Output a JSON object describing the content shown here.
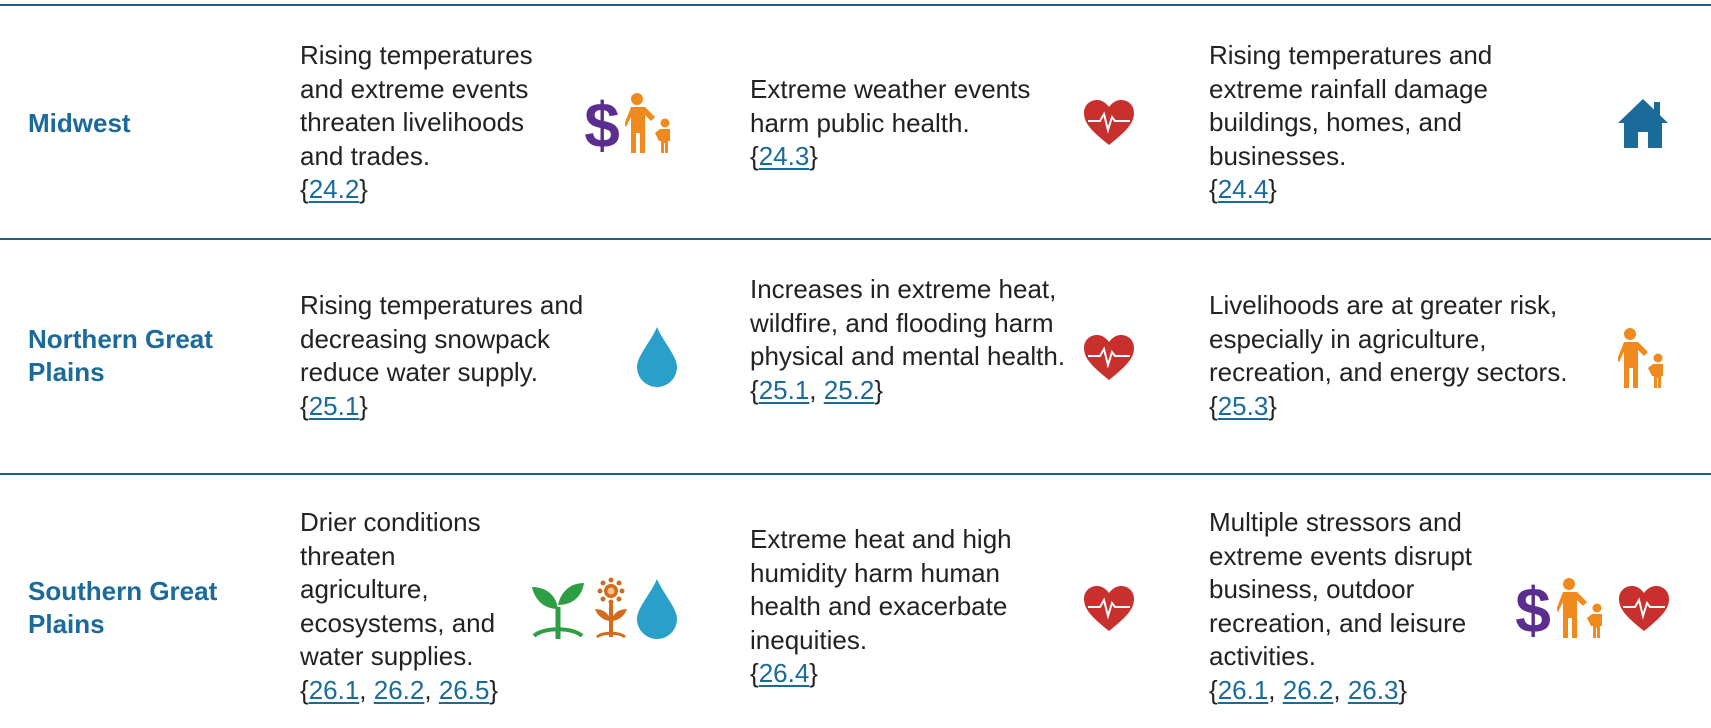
{
  "rows": [
    {
      "region": "Midwest",
      "cells": [
        {
          "text": "Rising temperatures and extreme events threaten livelihoods and trades.",
          "refs": [
            "24.2"
          ],
          "icons": [
            "dollar-icon",
            "parent-child-icon"
          ]
        },
        {
          "text": "Extreme weather events harm public health.",
          "refs": [
            "24.3"
          ],
          "icons": [
            "heart-pulse-icon"
          ]
        },
        {
          "text": "Rising temperatures and extreme rainfall damage buildings, homes, and businesses.",
          "refs": [
            "24.4"
          ],
          "icons": [
            "house-icon"
          ]
        }
      ]
    },
    {
      "region": "Northern Great Plains",
      "cells": [
        {
          "text": "Rising temperatures and decreasing snowpack reduce water supply.",
          "refs": [
            "25.1"
          ],
          "icons": [
            "water-drop-icon"
          ]
        },
        {
          "text": "Increases in extreme heat, wildfire, and flooding harm physical and mental health.",
          "refs": [
            "25.1",
            "25.2"
          ],
          "icons": [
            "heart-pulse-icon"
          ]
        },
        {
          "text": "Livelihoods are at greater risk, especially in agriculture, recreation, and energy sectors.",
          "refs": [
            "25.3"
          ],
          "icons": [
            "parent-child-icon"
          ]
        }
      ]
    },
    {
      "region": "Southern Great Plains",
      "cells": [
        {
          "text": "Drier conditions threaten agriculture, ecosystems, and water supplies.",
          "refs": [
            "26.1",
            "26.2",
            "26.5"
          ],
          "icons": [
            "sprout-icon",
            "sunflower-icon",
            "water-drop-icon"
          ]
        },
        {
          "text": "Extreme heat and high humidity harm human health and exacerbate inequities.",
          "refs": [
            "26.4"
          ],
          "icons": [
            "heart-pulse-icon"
          ]
        },
        {
          "text": "Multiple stressors and extreme events disrupt business, outdoor recreation, and leisure activities.",
          "refs": [
            "26.1",
            "26.2",
            "26.3"
          ],
          "icons": [
            "dollar-icon",
            "parent-child-icon",
            "heart-pulse-icon"
          ]
        }
      ]
    }
  ],
  "colors": {
    "region": "#1a6a9a",
    "rule": "#1f5e8a",
    "link": "#1a6a9a",
    "heart": "#c8302e",
    "dollar": "#5b2d8e",
    "person": "#f08a1c",
    "drop": "#2a9fc9",
    "house": "#1a6a9a",
    "sprout": "#2e9e44",
    "sunflower": "#d26b1e"
  }
}
